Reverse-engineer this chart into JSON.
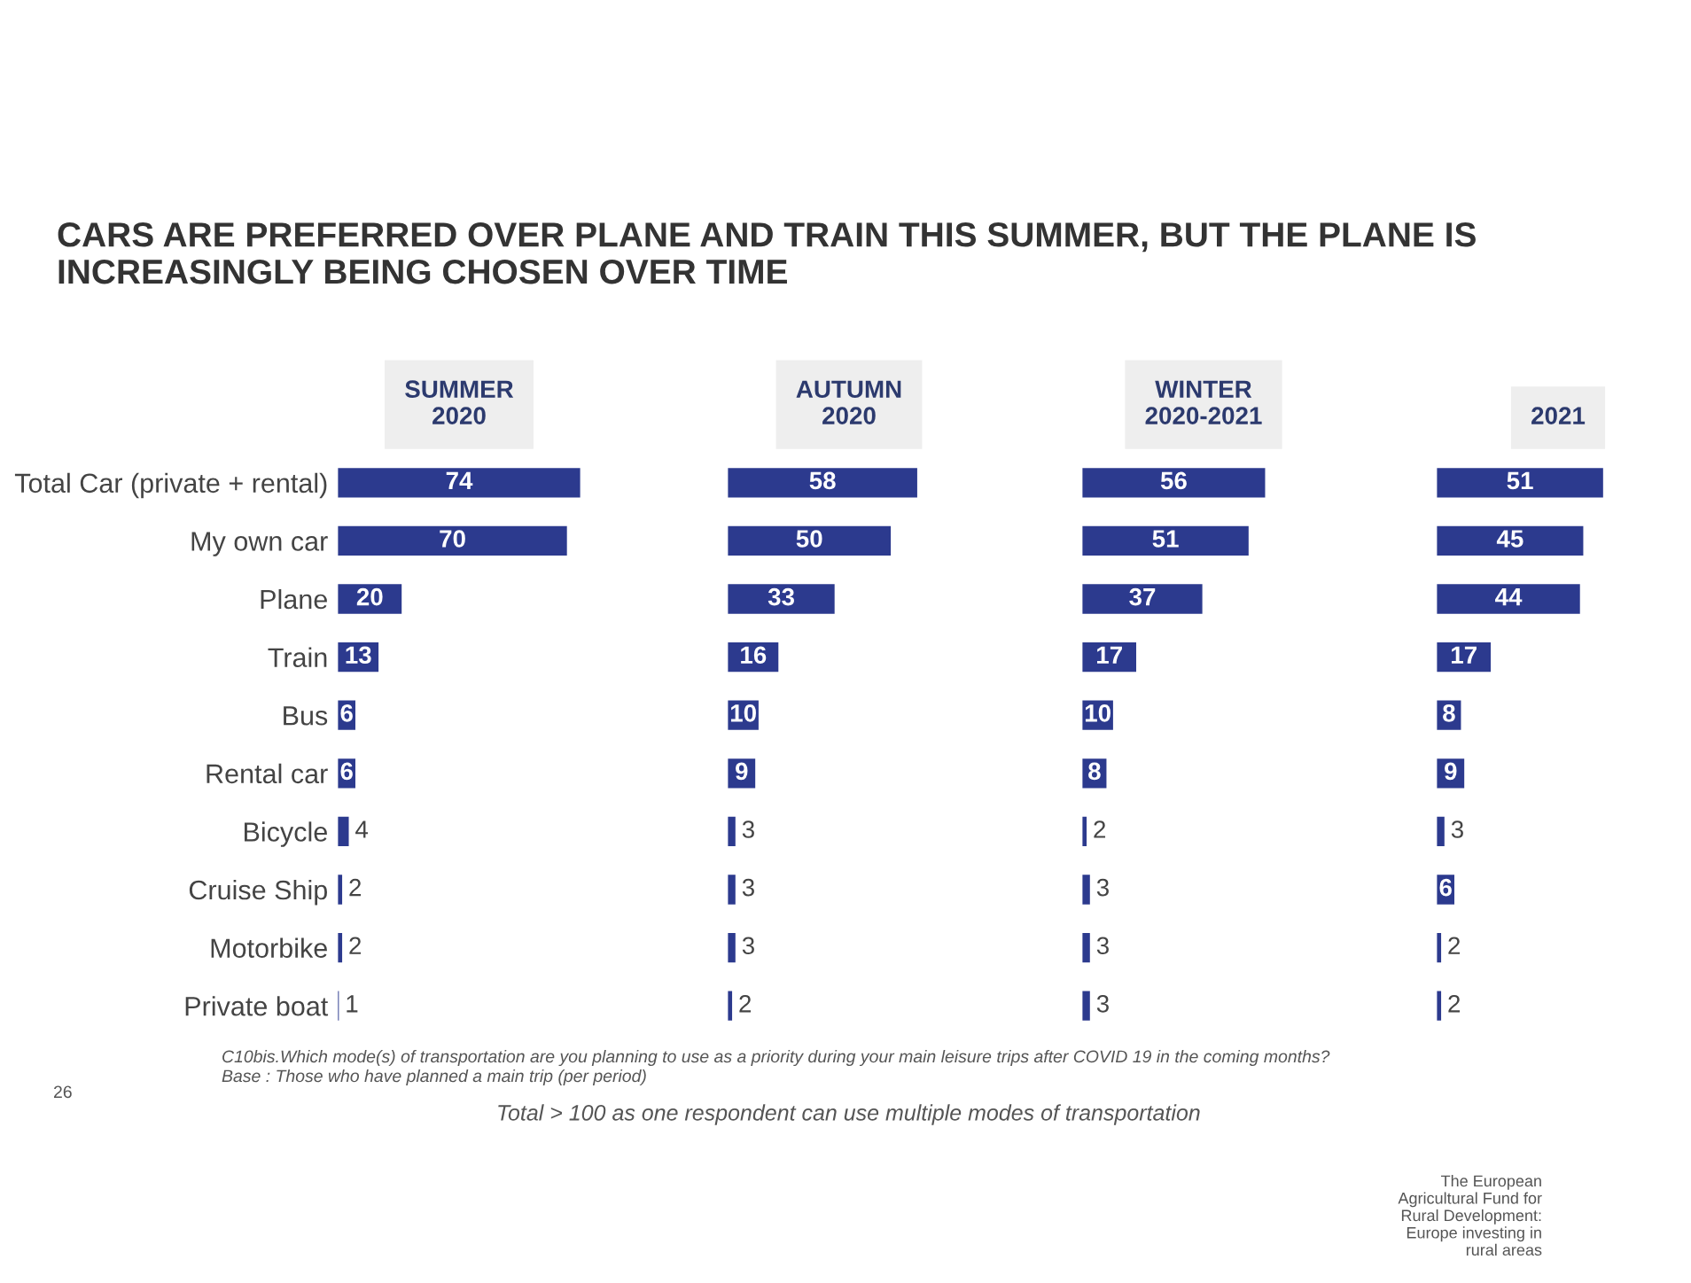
{
  "chart_data": [
    {
      "type": "bar",
      "orientation": "horizontal",
      "title": "CARS ARE PREFERRED OVER PLANE AND TRAIN THIS SUMMER, BUT THE PLANE IS INCREASINGLY BEING CHOSEN OVER TIME",
      "subtitle": "SUMMER\n2020",
      "categories": [
        "Total Car (private + rental)",
        "My own car",
        "Plane",
        "Train",
        "Bus",
        "Rental car",
        "Bicycle",
        "Cruise Ship",
        "Motorbike",
        "Private boat"
      ],
      "values": [
        74,
        70,
        20,
        13,
        6,
        6,
        4,
        2,
        2,
        1
      ],
      "color": "#2c3a8e",
      "data_labels": true,
      "tick_labels": "y",
      "grid": false,
      "legend": false,
      "annotations": [
        "C10bis.Which mode(s) of transportation are you planning to use as a priority during your main leisure trips after COVID 19 in the coming months?",
        "Base : Those who have planned a main trip (per period)",
        "Total > 100 as one respondent can use multiple modes of transportation",
        "26",
        "The European\nAgricultural Fund for\nRural Development:\nEurope investing in\nrural areas"
      ]
    },
    {
      "type": "bar",
      "orientation": "horizontal",
      "subtitle": "AUTUMN\n2020",
      "categories": [
        null,
        null,
        null,
        null,
        null,
        null,
        null,
        null,
        null,
        null
      ],
      "values": [
        58,
        50,
        33,
        16,
        10,
        9,
        3,
        3,
        3,
        2
      ],
      "color": "#2c3a8e",
      "data_labels": true,
      "tick_labels": false,
      "grid": false,
      "legend": false
    },
    {
      "type": "bar",
      "orientation": "horizontal",
      "subtitle": "WINTER\n2020-2021",
      "categories": [
        null,
        null,
        null,
        null,
        null,
        null,
        null,
        null,
        null,
        null
      ],
      "values": [
        56,
        51,
        37,
        17,
        10,
        8,
        2,
        3,
        3,
        3
      ],
      "color": "#2c3a8e",
      "data_labels": true,
      "tick_labels": false,
      "grid": false,
      "legend": false
    },
    {
      "type": "bar",
      "orientation": "horizontal",
      "subtitle": "2021",
      "categories": [
        null,
        null,
        null,
        null,
        null,
        null,
        null,
        null,
        null,
        null
      ],
      "values": [
        51,
        45,
        44,
        17,
        8,
        9,
        3,
        6,
        2,
        2
      ],
      "color": "#2c3a8e",
      "data_labels": true,
      "tick_labels": false,
      "grid": false,
      "legend": false
    }
  ]
}
